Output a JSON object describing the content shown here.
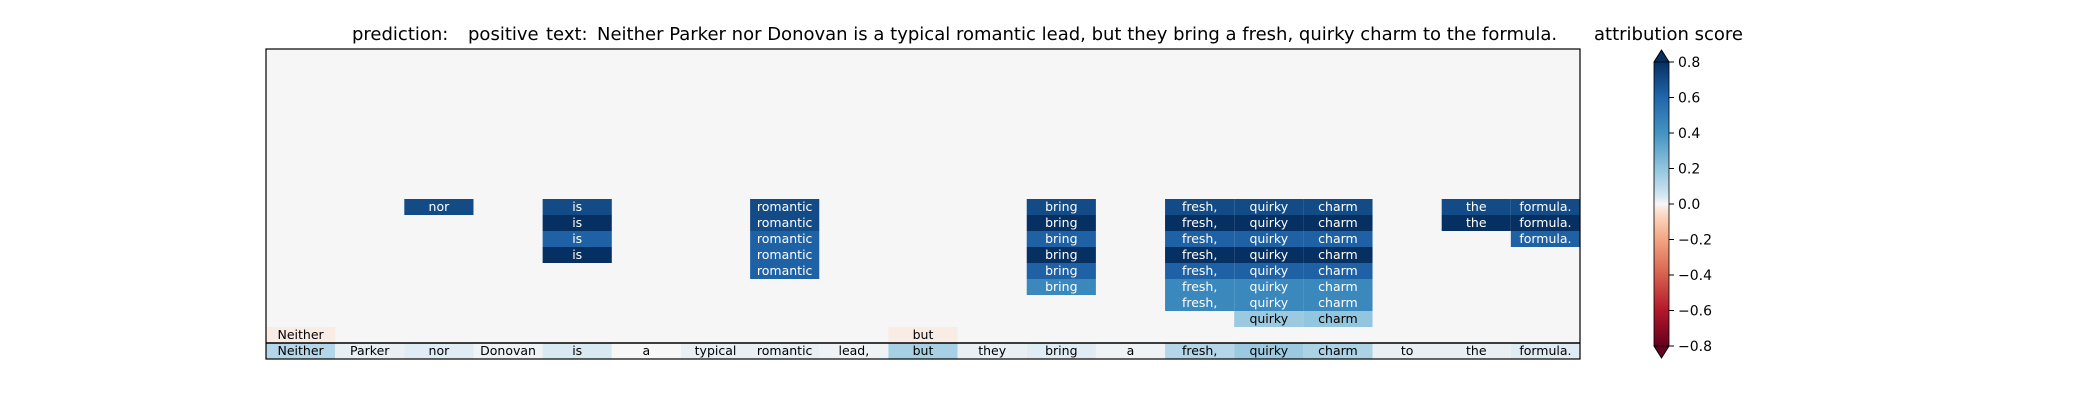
{
  "header": {
    "prediction_label": "prediction:",
    "prediction_value": "positive",
    "text_label": "text:",
    "text_value": "Neither Parker nor Donovan is a typical romantic lead, but they bring a fresh, quirky charm to the formula."
  },
  "colorbar": {
    "label": "attribution score",
    "ticks": [
      "0.8",
      "0.6",
      "0.4",
      "0.2",
      "0.0",
      "−0.2",
      "−0.4",
      "−0.6",
      "−0.8"
    ],
    "colormap": "RdBu",
    "range": [
      -0.8,
      0.8
    ]
  },
  "chart_data": {
    "type": "heatmap",
    "title": "",
    "tokens": [
      "Neither",
      "Parker",
      "nor",
      "Donovan",
      "is",
      "a",
      "typical",
      "romantic",
      "lead,",
      "but",
      "they",
      "bring",
      "a",
      "fresh,",
      "quirky",
      "charm",
      "to",
      "the",
      "formula."
    ],
    "base_row": [
      0.12,
      0.02,
      0.03,
      0.01,
      0.04,
      0.0,
      0.02,
      0.02,
      0.01,
      0.15,
      0.02,
      0.03,
      0.01,
      0.12,
      0.18,
      0.14,
      0.02,
      0.02,
      0.03
    ],
    "stacked_cells": [
      {
        "token_index": 0,
        "level": 1,
        "value": -0.02
      },
      {
        "token_index": 9,
        "level": 1,
        "value": -0.02
      },
      {
        "token_index": 13,
        "level": 3,
        "value": 0.45
      },
      {
        "token_index": 14,
        "level": 2,
        "value": 0.18
      },
      {
        "token_index": 14,
        "level": 3,
        "value": 0.45
      },
      {
        "token_index": 15,
        "level": 2,
        "value": 0.2
      },
      {
        "token_index": 15,
        "level": 3,
        "value": 0.45
      },
      {
        "token_index": 11,
        "level": 4,
        "value": 0.45
      },
      {
        "token_index": 13,
        "level": 4,
        "value": 0.45
      },
      {
        "token_index": 14,
        "level": 4,
        "value": 0.45
      },
      {
        "token_index": 15,
        "level": 4,
        "value": 0.45
      },
      {
        "token_index": 7,
        "level": 5,
        "value": 0.62
      },
      {
        "token_index": 11,
        "level": 5,
        "value": 0.62
      },
      {
        "token_index": 13,
        "level": 5,
        "value": 0.62
      },
      {
        "token_index": 14,
        "level": 5,
        "value": 0.62
      },
      {
        "token_index": 15,
        "level": 5,
        "value": 0.62
      },
      {
        "token_index": 4,
        "level": 6,
        "value": 0.8
      },
      {
        "token_index": 7,
        "level": 6,
        "value": 0.62
      },
      {
        "token_index": 11,
        "level": 6,
        "value": 0.8
      },
      {
        "token_index": 13,
        "level": 6,
        "value": 0.8
      },
      {
        "token_index": 14,
        "level": 6,
        "value": 0.8
      },
      {
        "token_index": 15,
        "level": 6,
        "value": 0.8
      },
      {
        "token_index": 4,
        "level": 7,
        "value": 0.62
      },
      {
        "token_index": 7,
        "level": 7,
        "value": 0.62
      },
      {
        "token_index": 11,
        "level": 7,
        "value": 0.62
      },
      {
        "token_index": 13,
        "level": 7,
        "value": 0.62
      },
      {
        "token_index": 14,
        "level": 7,
        "value": 0.62
      },
      {
        "token_index": 15,
        "level": 7,
        "value": 0.62
      },
      {
        "token_index": 18,
        "level": 7,
        "value": 0.62
      },
      {
        "token_index": 4,
        "level": 8,
        "value": 0.8
      },
      {
        "token_index": 7,
        "level": 8,
        "value": 0.7
      },
      {
        "token_index": 11,
        "level": 8,
        "value": 0.8
      },
      {
        "token_index": 13,
        "level": 8,
        "value": 0.8
      },
      {
        "token_index": 14,
        "level": 8,
        "value": 0.8
      },
      {
        "token_index": 15,
        "level": 8,
        "value": 0.8
      },
      {
        "token_index": 17,
        "level": 8,
        "value": 0.8
      },
      {
        "token_index": 18,
        "level": 8,
        "value": 0.8
      },
      {
        "token_index": 2,
        "level": 9,
        "value": 0.7
      },
      {
        "token_index": 4,
        "level": 9,
        "value": 0.7
      },
      {
        "token_index": 7,
        "level": 9,
        "value": 0.7
      },
      {
        "token_index": 11,
        "level": 9,
        "value": 0.7
      },
      {
        "token_index": 13,
        "level": 9,
        "value": 0.7
      },
      {
        "token_index": 14,
        "level": 9,
        "value": 0.7
      },
      {
        "token_index": 15,
        "level": 9,
        "value": 0.7
      },
      {
        "token_index": 17,
        "level": 9,
        "value": 0.7
      },
      {
        "token_index": 18,
        "level": 9,
        "value": 0.7
      }
    ],
    "max_level": 18,
    "colors": {
      "background": "#f5f6f5"
    }
  }
}
